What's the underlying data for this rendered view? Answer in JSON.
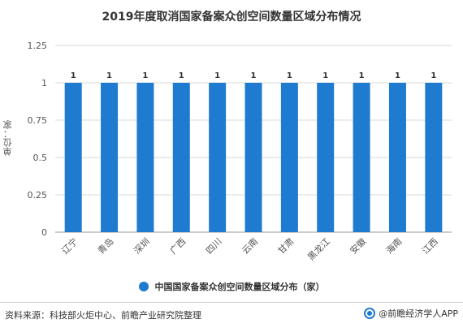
{
  "chart_data": {
    "type": "bar",
    "title": "2019年度取消国家备案众创空间数量区域分布情况",
    "ylabel": "单位：家",
    "xlabel": "",
    "categories": [
      "辽宁",
      "青岛",
      "深圳",
      "广西",
      "四川",
      "云南",
      "甘肃",
      "黑龙江",
      "安徽",
      "海南",
      "江西"
    ],
    "series": [
      {
        "name": "中国国家备案众创空间数量区域分布（家）",
        "values": [
          1,
          1,
          1,
          1,
          1,
          1,
          1,
          1,
          1,
          1,
          1
        ]
      }
    ],
    "ylim": [
      0,
      1.25
    ],
    "yticks": [
      "0",
      "0.25",
      "0.5",
      "0.75",
      "1",
      "1.25"
    ],
    "grid": true,
    "legend_position": "bottom",
    "bar_color": "#1f7bd0",
    "grid_color": "#d9d9d9"
  },
  "footer": {
    "source": "资料来源：科技部火炬中心、前瞻产业研究院整理",
    "brand": "@前瞻经济学人APP"
  }
}
